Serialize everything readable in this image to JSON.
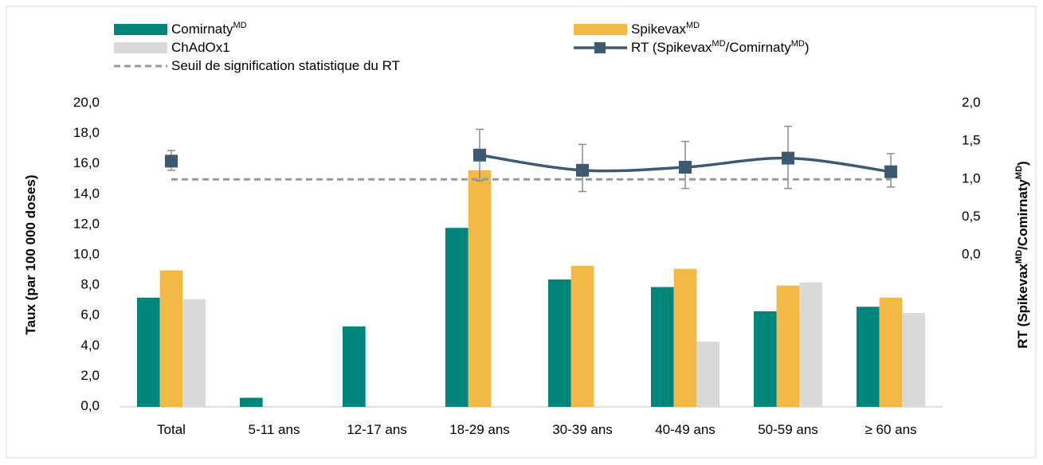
{
  "chart_data": {
    "type": "bar",
    "categories": [
      "Total",
      "5-11 ans",
      "12-17 ans",
      "18-29 ans",
      "30-39 ans",
      "40-49 ans",
      "50-59 ans",
      "≥ 60 ans"
    ],
    "y_label": "Taux (par 100 000 doses)",
    "y2_label": "RT (SpikevaxMD/ComirnatyMD)",
    "ylim": [
      0,
      20
    ],
    "yticks": [
      {
        "value": 0,
        "label": "0,0"
      },
      {
        "value": 2,
        "label": "2,0"
      },
      {
        "value": 4,
        "label": "4,0"
      },
      {
        "value": 6,
        "label": "6,0"
      },
      {
        "value": 8,
        "label": "8,0"
      },
      {
        "value": 10,
        "label": "10,0"
      },
      {
        "value": 12,
        "label": "12,0"
      },
      {
        "value": 14,
        "label": "14,0"
      },
      {
        "value": 16,
        "label": "16,0"
      },
      {
        "value": 18,
        "label": "18,0"
      },
      {
        "value": 20,
        "label": "20,0"
      }
    ],
    "y2lim": [
      -2,
      2
    ],
    "y2ticks": [
      {
        "value": 0,
        "label": "0,0"
      },
      {
        "value": 0.5,
        "label": "0,5"
      },
      {
        "value": 1,
        "label": "1,0"
      },
      {
        "value": 1.5,
        "label": "1,5"
      },
      {
        "value": 2,
        "label": "2,0"
      }
    ],
    "series": [
      {
        "name": "ComirnatyMD",
        "type": "bar",
        "color": "#00857c",
        "values": [
          7.2,
          0.6,
          5.3,
          11.8,
          8.4,
          7.9,
          6.3,
          6.6
        ]
      },
      {
        "name": "SpikevaxMD",
        "type": "bar",
        "color": "#f2b944",
        "values": [
          9.0,
          null,
          null,
          15.6,
          9.3,
          9.1,
          8.0,
          7.2
        ]
      },
      {
        "name": "ChAdOx1",
        "type": "bar",
        "color": "#d9d9d9",
        "values": [
          7.1,
          null,
          null,
          null,
          null,
          4.3,
          8.2,
          6.2
        ]
      },
      {
        "name": "RT (SpikevaxMD/ComirnatyMD)",
        "type": "line",
        "axis": "y2",
        "color": "#3d5a73",
        "values": [
          1.24,
          null,
          null,
          1.32,
          1.12,
          1.16,
          1.28,
          1.1
        ],
        "error_low": [
          1.12,
          null,
          null,
          0.98,
          0.84,
          0.88,
          0.88,
          0.9
        ],
        "error_high": [
          1.38,
          null,
          null,
          1.66,
          1.46,
          1.5,
          1.7,
          1.34
        ]
      },
      {
        "name": "Seuil de signification statistique du RT",
        "type": "dashed",
        "axis": "y2",
        "color": "#999999",
        "values": [
          1,
          1,
          1,
          1,
          1,
          1,
          1,
          1
        ]
      }
    ]
  }
}
